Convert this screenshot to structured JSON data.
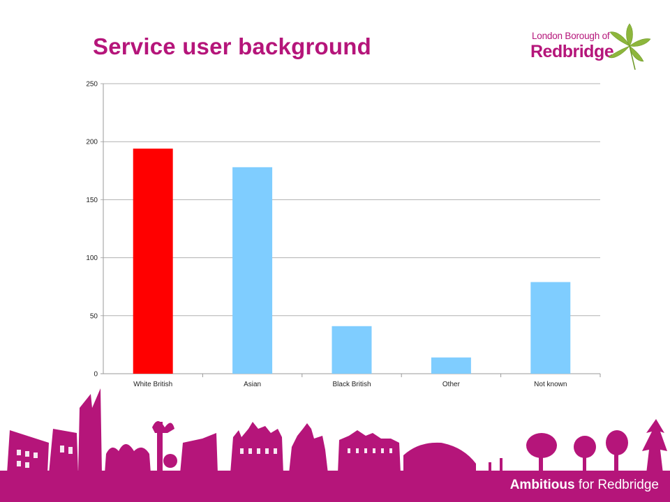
{
  "slide": {
    "title": "Service user background"
  },
  "logo": {
    "line1": "London Borough of",
    "line2": "Redbridge"
  },
  "footer": {
    "strong": "Ambitious",
    "rest": " for Redbridge"
  },
  "colors": {
    "brand": "#b5157a",
    "highlight_bar": "#ff0000",
    "bar": "#7fcdff",
    "leaf": "#8db63c"
  },
  "chart_data": {
    "type": "bar",
    "title": "",
    "xlabel": "",
    "ylabel": "",
    "categories": [
      "White British",
      "Asian",
      "Black British",
      "Other",
      "Not known"
    ],
    "values": [
      194,
      178,
      41,
      14,
      79
    ],
    "bar_colors": [
      "#ff0000",
      "#7fcdff",
      "#7fcdff",
      "#7fcdff",
      "#7fcdff"
    ],
    "ylim": [
      0,
      250
    ],
    "yticks": [
      0,
      50,
      100,
      150,
      200,
      250
    ],
    "grid": true,
    "legend": "none"
  }
}
